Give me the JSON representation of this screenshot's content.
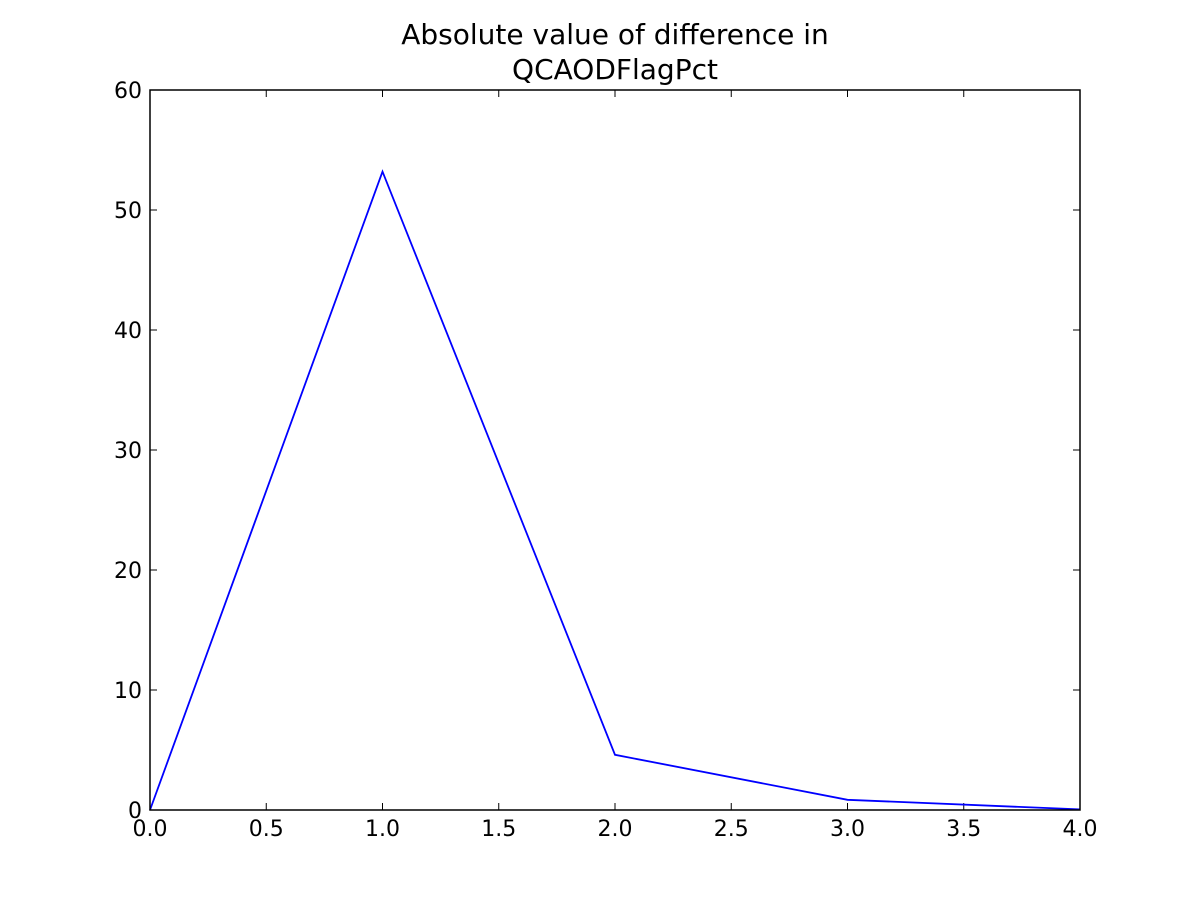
{
  "chart_data": {
    "type": "line",
    "title": "Absolute value of difference in QCAODFlagPct",
    "title_lines": [
      "Absolute value of difference in",
      "QCAODFlagPct"
    ],
    "xlabel": "",
    "ylabel": "",
    "xlim": [
      0,
      4
    ],
    "ylim": [
      0,
      60
    ],
    "x_ticks": [
      0,
      0.5,
      1,
      1.5,
      2,
      2.5,
      3,
      3.5,
      4
    ],
    "x_tick_labels": [
      "0.0",
      "0.5",
      "1.0",
      "1.5",
      "2.0",
      "2.5",
      "3.0",
      "3.5",
      "4.0"
    ],
    "y_ticks": [
      0,
      10,
      20,
      30,
      40,
      50,
      60
    ],
    "y_tick_labels": [
      "0",
      "10",
      "20",
      "30",
      "40",
      "50",
      "60"
    ],
    "grid": false,
    "legend": "none",
    "series": [
      {
        "color": "#0000ff",
        "x": [
          0,
          1,
          2,
          3,
          4
        ],
        "y": [
          0,
          53.2,
          4.6,
          0.85,
          0.05
        ]
      }
    ]
  }
}
